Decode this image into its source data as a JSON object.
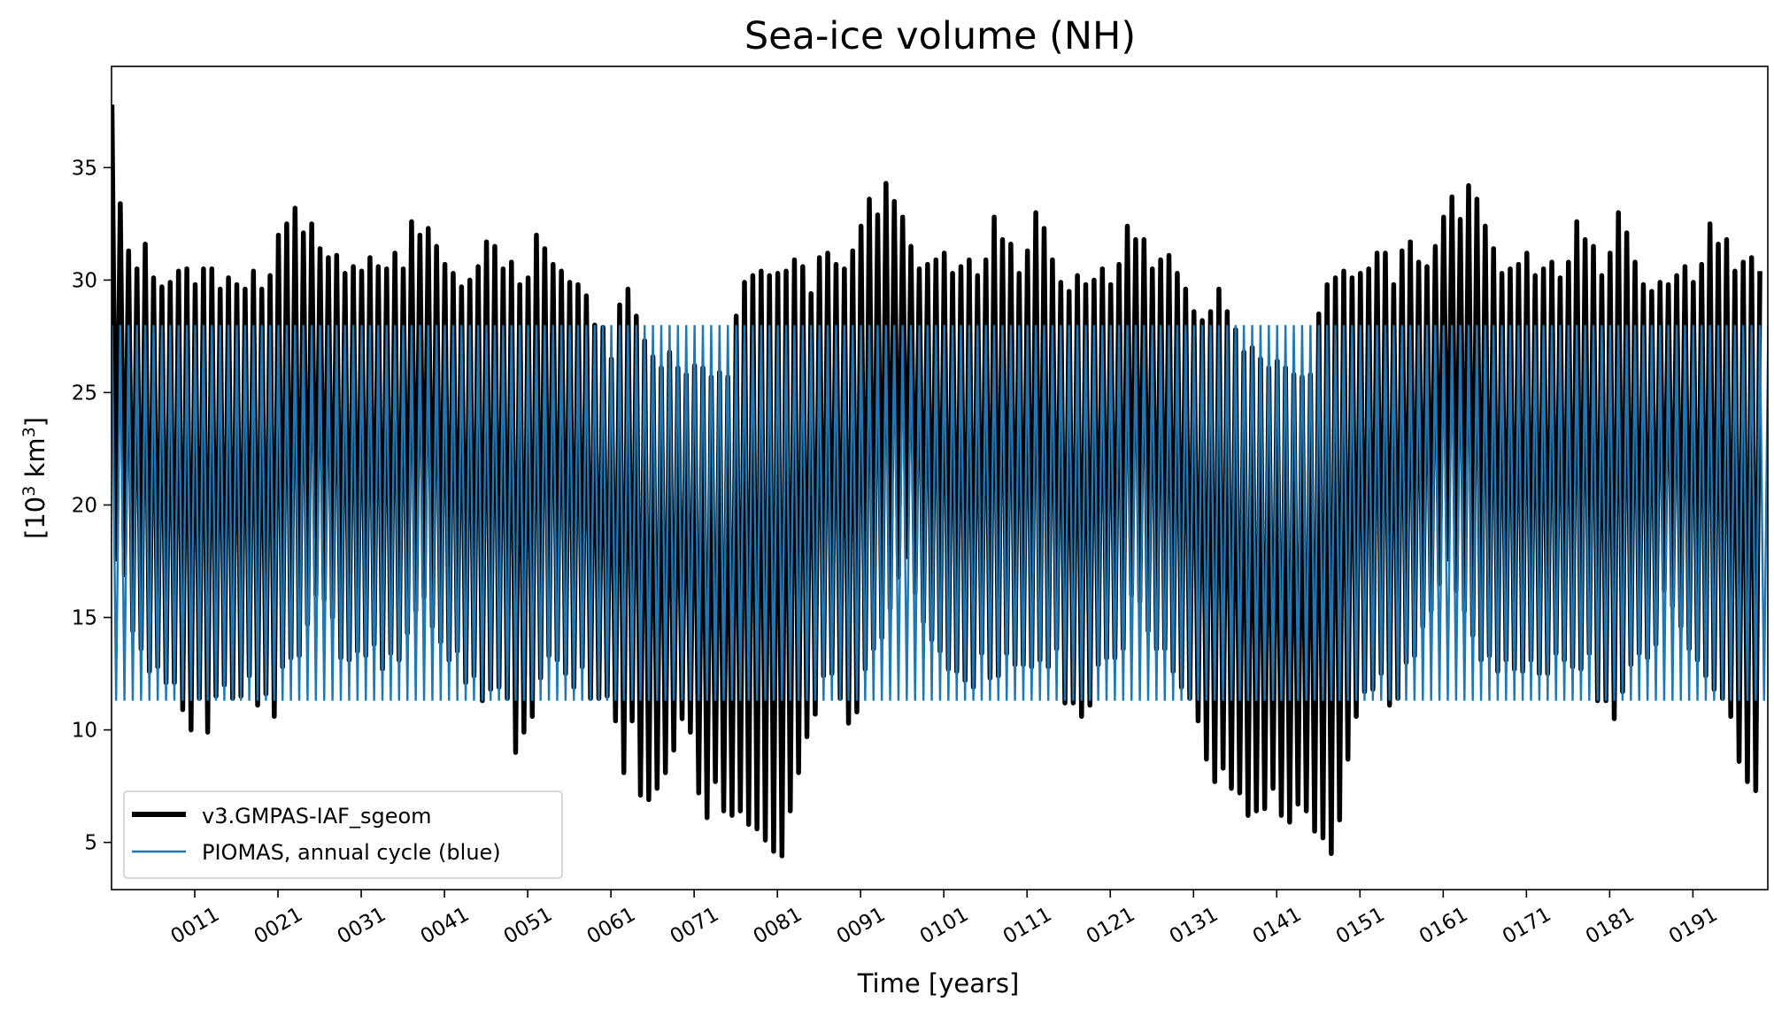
{
  "chart_data": {
    "type": "line",
    "title": "Sea-ice volume (NH)",
    "xlabel": "Time [years]",
    "ylabel_parts": {
      "prefix": "[10",
      "sup1": "3",
      "mid": " km",
      "sup2": "3",
      "suffix": "]"
    },
    "xlim": [
      1,
      200
    ],
    "ylim": [
      2.9,
      39.5
    ],
    "x_ticks": [
      {
        "value": 11,
        "label": "0011"
      },
      {
        "value": 21,
        "label": "0021"
      },
      {
        "value": 31,
        "label": "0031"
      },
      {
        "value": 41,
        "label": "0041"
      },
      {
        "value": 51,
        "label": "0051"
      },
      {
        "value": 61,
        "label": "0061"
      },
      {
        "value": 71,
        "label": "0071"
      },
      {
        "value": 81,
        "label": "0081"
      },
      {
        "value": 91,
        "label": "0091"
      },
      {
        "value": 101,
        "label": "0101"
      },
      {
        "value": 111,
        "label": "0111"
      },
      {
        "value": 121,
        "label": "0121"
      },
      {
        "value": 131,
        "label": "0131"
      },
      {
        "value": 141,
        "label": "0141"
      },
      {
        "value": 151,
        "label": "0151"
      },
      {
        "value": 161,
        "label": "0161"
      },
      {
        "value": 171,
        "label": "0171"
      },
      {
        "value": 181,
        "label": "0181"
      },
      {
        "value": 191,
        "label": "0191"
      }
    ],
    "y_ticks": [
      {
        "value": 5,
        "label": "5"
      },
      {
        "value": 10,
        "label": "10"
      },
      {
        "value": 15,
        "label": "15"
      },
      {
        "value": 20,
        "label": "20"
      },
      {
        "value": 25,
        "label": "25"
      },
      {
        "value": 30,
        "label": "30"
      },
      {
        "value": 35,
        "label": "35"
      }
    ],
    "legend_position": "lower-left",
    "series": [
      {
        "name": "v3.GMPAS-IAF_sgeom",
        "color": "#000000",
        "line": "thick",
        "style": "annual cycle (yearly max / min, in 10^3 km^3)",
        "years": [
          1,
          2,
          3,
          4,
          5,
          6,
          7,
          8,
          9,
          10,
          11,
          12,
          13,
          14,
          15,
          16,
          17,
          18,
          19,
          20,
          21,
          22,
          23,
          24,
          25,
          26,
          27,
          28,
          29,
          30,
          31,
          32,
          33,
          34,
          35,
          36,
          37,
          38,
          39,
          40,
          41,
          42,
          43,
          44,
          45,
          46,
          47,
          48,
          49,
          50,
          51,
          52,
          53,
          54,
          55,
          56,
          57,
          58,
          59,
          60,
          61,
          62,
          63,
          64,
          65,
          66,
          67,
          68,
          69,
          70,
          71,
          72,
          73,
          74,
          75,
          76,
          77,
          78,
          79,
          80,
          81,
          82,
          83,
          84,
          85,
          86,
          87,
          88,
          89,
          90,
          91,
          92,
          93,
          94,
          95,
          96,
          97,
          98,
          99,
          100,
          101,
          102,
          103,
          104,
          105,
          106,
          107,
          108,
          109,
          110,
          111,
          112,
          113,
          114,
          115,
          116,
          117,
          118,
          119,
          120,
          121,
          122,
          123,
          124,
          125,
          126,
          127,
          128,
          129,
          130,
          131,
          132,
          133,
          134,
          135,
          136,
          137,
          138,
          139,
          140,
          141,
          142,
          143,
          144,
          145,
          146,
          147,
          148,
          149,
          150,
          151,
          152,
          153,
          154,
          155,
          156,
          157,
          158,
          159,
          160,
          161,
          162,
          163,
          164,
          165,
          166,
          167,
          168,
          169,
          170,
          171,
          172,
          173,
          174,
          175,
          176,
          177,
          178,
          179,
          180,
          181,
          182,
          183,
          184,
          185,
          186,
          187,
          188,
          189,
          190,
          191,
          192,
          193,
          194,
          195,
          196,
          197,
          198,
          199,
          200
        ],
        "max": [
          37.8,
          33.4,
          31.3,
          30.5,
          31.6,
          30.1,
          29.7,
          29.9,
          30.4,
          30.5,
          29.8,
          30.5,
          30.5,
          29.6,
          30.1,
          29.8,
          29.6,
          30.4,
          29.6,
          30.2,
          32.0,
          32.5,
          33.2,
          32.1,
          32.5,
          31.4,
          31.0,
          31.1,
          30.3,
          30.6,
          30.4,
          31.0,
          30.6,
          30.5,
          31.2,
          30.5,
          32.6,
          32.0,
          32.3,
          31.5,
          30.7,
          30.3,
          29.7,
          30.0,
          30.6,
          31.7,
          31.5,
          30.5,
          30.8,
          29.8,
          30.1,
          32.0,
          31.4,
          30.7,
          30.4,
          29.9,
          29.8,
          29.3,
          28.0,
          27.9,
          26.5,
          28.9,
          29.6,
          28.4,
          27.3,
          26.6,
          26.1,
          26.8,
          26.1,
          25.8,
          26.2,
          26.1,
          25.7,
          25.9,
          25.7,
          28.4,
          29.9,
          30.2,
          30.4,
          30.2,
          30.3,
          30.4,
          30.9,
          30.6,
          29.4,
          31.0,
          31.2,
          30.7,
          30.5,
          31.3,
          32.4,
          33.6,
          32.9,
          34.3,
          33.5,
          32.8,
          31.5,
          30.5,
          30.7,
          30.9,
          31.2,
          30.3,
          30.6,
          30.9,
          30.2,
          30.9,
          32.8,
          31.8,
          31.6,
          30.3,
          31.3,
          33.0,
          32.3,
          30.9,
          29.9,
          29.5,
          30.2,
          29.8,
          30.0,
          30.5,
          29.8,
          30.7,
          32.4,
          31.8,
          31.8,
          30.5,
          30.9,
          31.1,
          30.3,
          29.6,
          28.6,
          28.2,
          28.6,
          29.6,
          28.6,
          27.8,
          26.8,
          27.0,
          26.5,
          26.1,
          26.4,
          26.1,
          25.8,
          25.7,
          25.8,
          28.5,
          29.8,
          30.1,
          30.4,
          30.1,
          30.3,
          30.5,
          31.2,
          31.2,
          29.8,
          31.3,
          31.7,
          30.8,
          30.6,
          31.5,
          32.8,
          33.7,
          32.7,
          34.2,
          33.6,
          32.4,
          31.4,
          30.3,
          30.5,
          30.7,
          31.2,
          30.2,
          30.5,
          30.8,
          30.1,
          30.8,
          32.6,
          31.8,
          31.5,
          30.2,
          31.2,
          33.0,
          32.1,
          30.8,
          29.8,
          29.5,
          29.9,
          29.8,
          30.2,
          30.6,
          29.9,
          30.7,
          32.5,
          31.6,
          31.8,
          30.4,
          30.8,
          31.0,
          30.4,
          29.7
        ],
        "min": [
          17.6,
          16.9,
          14.4,
          13.6,
          12.6,
          12.8,
          12.1,
          12.1,
          10.9,
          10.0,
          11.4,
          9.9,
          11.5,
          12.0,
          11.4,
          11.5,
          12.4,
          11.1,
          11.6,
          10.6,
          12.8,
          13.2,
          13.3,
          14.7,
          16.0,
          15.8,
          15.0,
          13.2,
          13.1,
          13.5,
          13.3,
          13.8,
          12.7,
          13.4,
          13.1,
          14.3,
          15.3,
          15.9,
          14.6,
          13.9,
          13.1,
          13.5,
          12.1,
          12.4,
          11.3,
          11.8,
          11.9,
          11.4,
          9.0,
          9.9,
          10.6,
          12.3,
          13.3,
          13.1,
          12.5,
          11.9,
          12.8,
          11.4,
          11.4,
          11.5,
          10.4,
          8.1,
          10.4,
          7.1,
          6.9,
          7.4,
          8.1,
          9.1,
          10.5,
          9.9,
          7.2,
          6.1,
          7.7,
          6.4,
          6.2,
          6.4,
          5.8,
          5.6,
          5.1,
          4.6,
          4.4,
          6.4,
          8.1,
          9.7,
          10.7,
          12.4,
          12.5,
          11.4,
          10.3,
          10.8,
          12.7,
          13.6,
          14.1,
          15.4,
          16.8,
          17.7,
          16.1,
          14.8,
          14.0,
          13.5,
          12.7,
          12.6,
          12.2,
          11.9,
          13.4,
          12.3,
          12.4,
          13.4,
          12.9,
          12.9,
          12.8,
          13.1,
          12.8,
          13.6,
          11.2,
          11.2,
          10.6,
          11.1,
          12.9,
          13.2,
          13.2,
          13.6,
          16.0,
          15.7,
          14.4,
          13.6,
          13.6,
          12.6,
          11.9,
          11.4,
          10.4,
          8.7,
          7.7,
          8.3,
          7.4,
          7.2,
          6.2,
          6.4,
          6.5,
          7.4,
          6.2,
          5.9,
          6.7,
          6.4,
          5.5,
          5.2,
          4.5,
          6.0,
          8.7,
          10.6,
          11.7,
          11.8,
          12.5,
          11.1,
          11.4,
          13.0,
          13.3,
          14.6,
          15.3,
          16.5,
          17.6,
          16.2,
          15.3,
          14.2,
          13.1,
          13.3,
          12.6,
          13.1,
          12.7,
          12.6,
          13.1,
          12.5,
          12.5,
          13.4,
          13.1,
          12.8,
          12.7,
          13.4,
          11.3,
          11.3,
          10.5,
          11.7,
          12.9,
          13.4,
          13.2,
          13.8,
          16.2,
          15.5,
          14.6,
          13.6,
          13.1,
          12.4,
          11.8,
          11.4,
          10.6,
          8.6,
          7.7,
          7.3
        ]
      },
      {
        "name": "PIOMAS, annual cycle (blue)",
        "color": "#1f77b4",
        "line": "thin",
        "style": "repeated climatological annual cycle",
        "max": 28.0,
        "min": 11.3
      }
    ]
  }
}
